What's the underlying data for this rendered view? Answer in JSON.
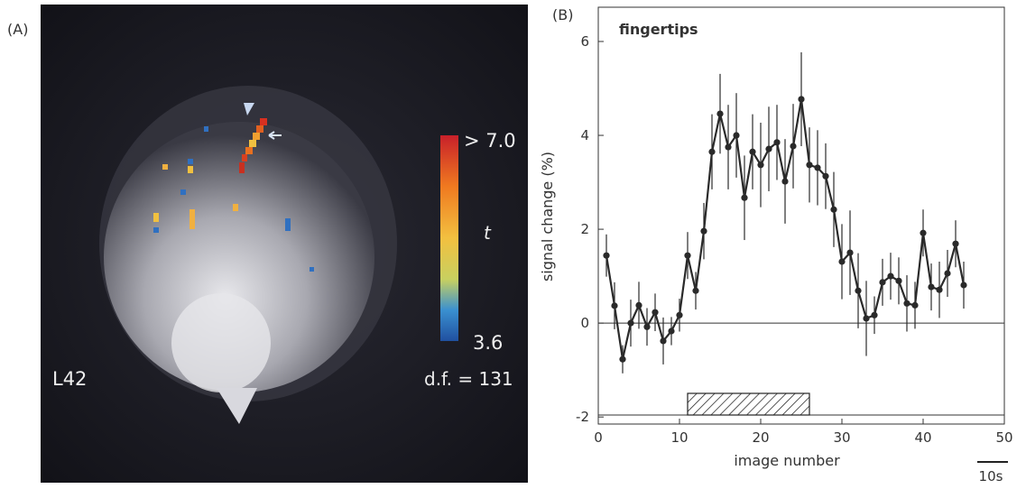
{
  "image": {
    "panel_label": "(A)",
    "colorbar_max": "> 7.0",
    "colorbar_label": "t",
    "colorbar_min": "3.6",
    "slice_label": "L42",
    "df_label": "d.f. = 131"
  },
  "chart_data": {
    "type": "line",
    "panel_label": "(B)",
    "title": "fingertips",
    "x_label": "image number",
    "y_label": "signal change (%)",
    "scale_bar": "10s",
    "x": [
      1,
      2,
      3,
      4,
      5,
      6,
      7,
      8,
      9,
      10,
      11,
      12,
      13,
      14,
      15,
      16,
      17,
      18,
      19,
      20,
      21,
      22,
      23,
      24,
      25,
      26,
      27,
      28,
      29,
      30,
      31,
      32,
      33,
      34,
      35,
      36,
      37,
      38,
      39,
      40,
      41,
      42,
      43,
      44,
      45
    ],
    "series": [
      {
        "color": "#2a2a2a",
        "values": [
          1.44,
          0.37,
          -0.77,
          0.0,
          0.38,
          -0.08,
          0.23,
          -0.38,
          -0.17,
          0.17,
          1.44,
          0.69,
          1.96,
          3.65,
          4.46,
          3.75,
          4.0,
          2.67,
          3.65,
          3.37,
          3.71,
          3.85,
          3.02,
          3.77,
          4.77,
          3.37,
          3.31,
          3.13,
          2.42,
          1.31,
          1.5,
          0.69,
          0.1,
          0.17,
          0.87,
          1.0,
          0.9,
          0.42,
          0.38,
          1.92,
          0.77,
          0.71,
          1.06,
          1.69,
          0.81
        ],
        "errors": [
          0.45,
          0.5,
          0.3,
          0.5,
          0.5,
          0.4,
          0.4,
          0.5,
          0.3,
          0.35,
          0.5,
          0.4,
          0.6,
          0.8,
          0.85,
          0.9,
          0.9,
          0.9,
          0.8,
          0.9,
          0.9,
          0.8,
          0.9,
          0.9,
          1.0,
          0.8,
          0.8,
          0.7,
          0.8,
          0.8,
          0.9,
          0.8,
          0.8,
          0.4,
          0.5,
          0.5,
          0.5,
          0.6,
          0.5,
          0.5,
          0.5,
          0.6,
          0.5,
          0.5,
          0.5
        ]
      }
    ],
    "stimulus": [
      11,
      26
    ],
    "xlim": [
      0,
      50
    ],
    "ylim": [
      -2.15,
      6.73
    ],
    "xticks": [
      0,
      10,
      20,
      30,
      40,
      50
    ],
    "yticks": [
      -2,
      0,
      2,
      4,
      6
    ]
  }
}
